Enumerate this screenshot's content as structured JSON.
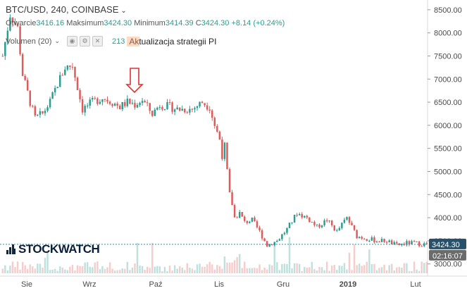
{
  "header": {
    "title": "BTC/USD, 240, COINBASE",
    "open_label": "Otwarcie",
    "open_value": "3416.16",
    "high_label": "Maksimum",
    "high_value": "3424.30",
    "low_label": "Minimum",
    "low_value": "3414.39",
    "close_label": "C",
    "close_value": "3424.30",
    "change": "+8.14 (+0.24%)"
  },
  "volume_row": {
    "label": "Volumen (20)",
    "value": "213",
    "annotation": "Aktualizacja strategii PI"
  },
  "logo": {
    "text": "STOCKWATCH"
  },
  "colors": {
    "up": "#2a9d8f",
    "down": "#e05a5a",
    "arrow": "#e03030",
    "price_line": "#3a8aa8",
    "price_tag": "#27506b"
  },
  "chart_data": {
    "type": "candlestick",
    "symbol": "BTC/USD",
    "interval": "240",
    "y_axis": {
      "ticks": [
        "8500.00",
        "8000.00",
        "7500.00",
        "7000.00",
        "6500.00",
        "6000.00",
        "5500.00",
        "5000.00",
        "4500.00",
        "4000.00",
        "3500.00",
        "3000.00"
      ],
      "range": [
        2950,
        8650
      ]
    },
    "x_axis": {
      "tick_labels": [
        "Sie",
        "Wrz",
        "Paź",
        "Lis",
        "Gru",
        "2019",
        "Lut"
      ],
      "bold_labels": [
        "2019"
      ]
    },
    "last_price": "3424.30",
    "countdown": "02:16:07",
    "trend_x": [
      0,
      3,
      6,
      8,
      11,
      13,
      16,
      19,
      22,
      25,
      28,
      32,
      36,
      40,
      44,
      47,
      50,
      53,
      56,
      60,
      63,
      67,
      70,
      73,
      76,
      80,
      83,
      85,
      87,
      88,
      89,
      90,
      91,
      92,
      93,
      95,
      97,
      100,
      103,
      106,
      110,
      114,
      118,
      122,
      126,
      130,
      134,
      138,
      142,
      146,
      150,
      154,
      158,
      162,
      165,
      169
    ],
    "trend_y": [
      7500,
      8400,
      8100,
      7100,
      6500,
      6150,
      6250,
      6500,
      6900,
      7250,
      7300,
      6350,
      6500,
      6600,
      6500,
      6400,
      6500,
      6450,
      6550,
      6250,
      6450,
      6400,
      6350,
      6350,
      6350,
      6500,
      6400,
      6000,
      5700,
      5350,
      5550,
      5000,
      4500,
      4300,
      4000,
      4100,
      3900,
      3950,
      3700,
      3400,
      3500,
      3750,
      4100,
      4000,
      3800,
      3950,
      3700,
      4000,
      3600,
      3550,
      3500,
      3500,
      3400,
      3450,
      3450,
      3424
    ]
  }
}
